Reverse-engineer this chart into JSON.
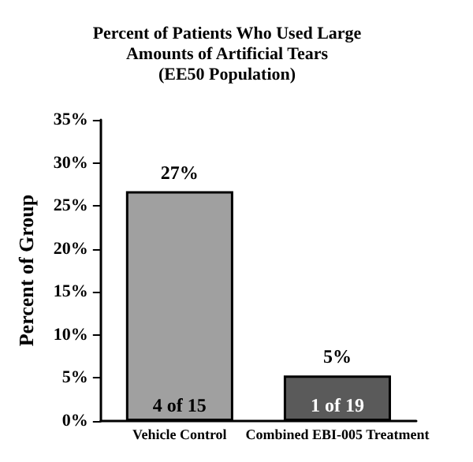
{
  "chart_data": {
    "type": "bar",
    "title": "Percent of Patients Who Used Large\nAmounts of Artificial Tears\n(EE50 Population)",
    "ylabel": "Percent of Group",
    "categories": [
      "Vehicle Control",
      "Combined EBI-005 Treatment"
    ],
    "values": [
      26.7,
      5.3
    ],
    "colors": [
      "#a0a0a0",
      "#5a5a5a"
    ],
    "value_labels": [
      "27%",
      "5%"
    ],
    "annotations": [
      "4 of 15",
      "1 of 19"
    ],
    "ylim": [
      0,
      35
    ],
    "yticks": [
      {
        "value": 0,
        "label": "0%"
      },
      {
        "value": 5,
        "label": "5%"
      },
      {
        "value": 10,
        "label": "10%"
      },
      {
        "value": 15,
        "label": "15%"
      },
      {
        "value": 20,
        "label": "20%"
      },
      {
        "value": 25,
        "label": "25%"
      },
      {
        "value": 30,
        "label": "30%"
      },
      {
        "value": 35,
        "label": "35%"
      }
    ],
    "grid": false
  }
}
